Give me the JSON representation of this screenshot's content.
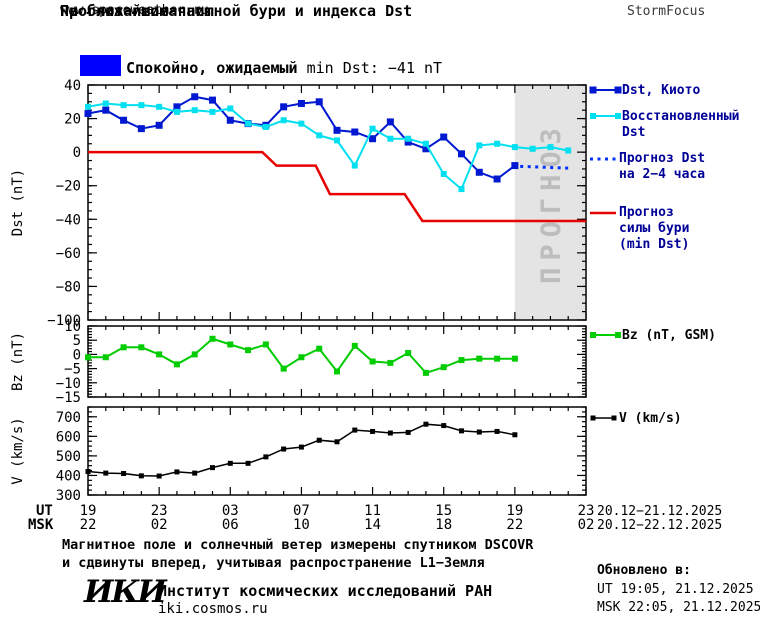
{
  "header": {
    "title_line1": "Прогноз геомагнитной бури и индекса Dst",
    "title_line2": "на ближайшие часы",
    "url": "www.spaceweather.ru",
    "brand": "StormFocus"
  },
  "status_banner": {
    "swatch_color": "#0000ff",
    "text_bold": "Спокойно, ожидаемый",
    "text_rest": " min Dst: −41 nT"
  },
  "legend_dst": {
    "text_color": "#000099",
    "entries": [
      {
        "label_lines": [
          "Dst, Киото"
        ],
        "color": "#0018d0",
        "style": "solid-marker"
      },
      {
        "label_lines": [
          "Восстановленный",
          "Dst"
        ],
        "color": "#00e0f0",
        "style": "solid-marker"
      },
      {
        "label_lines": [
          "Прогноз Dst",
          "на 2−4 часа"
        ],
        "color": "#0030ff",
        "style": "dotted"
      },
      {
        "label_lines": [
          "Прогноз",
          "силы бури",
          "(min Dst)"
        ],
        "color": "#e80000",
        "style": "solid"
      }
    ]
  },
  "legend_bz": {
    "label": "Bz (nT, GSM)",
    "color": "#00cc00"
  },
  "legend_v": {
    "label": "V (km/s)",
    "color": "#000000"
  },
  "forecast_band": {
    "label": "ПРОГНОЗ",
    "fill": "#e4e4e4",
    "text_color": "#bdbdbd"
  },
  "x_axis": {
    "ut_label": "UT",
    "msk_label": "MSK",
    "ut_hours": [
      "19",
      "23",
      "03",
      "07",
      "11",
      "15",
      "19",
      "23"
    ],
    "msk_hours": [
      "22",
      "02",
      "06",
      "10",
      "14",
      "18",
      "22",
      "02"
    ],
    "ut_dates": "20.12−21.12.2025",
    "msk_dates": "20.12−22.12.2025"
  },
  "footer": {
    "note_line1": "Магнитное поле и солнечный ветер измерены спутником DSCOVR",
    "note_line2": "и сдвинуты вперед, учитывая распространение L1−Земля",
    "logo": "ИКИ",
    "institute": "Институт космических исследований РАН",
    "institute_url": "iki.cosmos.ru",
    "updated_label": "Обновлено в:",
    "updated_ut": "UT  19:05, 21.12.2025",
    "updated_msk": "MSK 22:05, 21.12.2025"
  },
  "chart_data": [
    {
      "type": "line",
      "panel": "dst",
      "ylabel": "Dst (nT)",
      "ylim": [
        -100,
        40
      ],
      "yticks": [
        40,
        20,
        0,
        -20,
        -40,
        -60,
        -80,
        -100
      ],
      "y_minor_step": 5,
      "xlim_hours": [
        0,
        28
      ],
      "x_major_step": 4,
      "forecast_band_hours": [
        24,
        28
      ],
      "series": [
        {
          "name": "Dst, Киото",
          "color": "#0018d0",
          "marker": "square",
          "marker_size": 7,
          "width": 2,
          "x": [
            0,
            1,
            2,
            3,
            4,
            5,
            6,
            7,
            8,
            9,
            10,
            11,
            12,
            13,
            14,
            15,
            16,
            17,
            18,
            19,
            20,
            21,
            22,
            23,
            24
          ],
          "y": [
            23,
            25,
            19,
            14,
            16,
            27,
            33,
            31,
            19,
            17,
            16,
            27,
            29,
            30,
            13,
            12,
            8,
            18,
            6,
            2,
            9,
            -1,
            -12,
            -16,
            -8
          ]
        },
        {
          "name": "Восстановленный Dst",
          "color": "#00e0f0",
          "marker": "square",
          "marker_size": 6,
          "width": 2,
          "x": [
            0,
            1,
            2,
            3,
            4,
            5,
            6,
            7,
            8,
            9,
            10,
            11,
            12,
            13,
            14,
            15,
            16,
            17,
            18,
            19,
            20,
            21,
            22,
            23,
            24,
            25,
            26,
            27
          ],
          "y": [
            27,
            29,
            28,
            28,
            27,
            24,
            25,
            24,
            26,
            17,
            15,
            19,
            17,
            10,
            7,
            -8,
            14,
            8,
            8,
            5,
            -13,
            -22,
            4,
            5,
            3,
            2,
            3,
            1
          ]
        },
        {
          "name": "Прогноз Dst на 2−4 часа",
          "color": "#0030ff",
          "style": "dotted",
          "width": 3,
          "x": [
            24.3,
            27
          ],
          "y": [
            -8.5,
            -9.5
          ]
        },
        {
          "name": "Прогноз силы бури (min Dst)",
          "color": "#e80000",
          "width": 2.5,
          "x": [
            0,
            9.8,
            10.6,
            12.8,
            13.6,
            17.8,
            18.8,
            28
          ],
          "y": [
            0,
            0,
            -8,
            -8,
            -25,
            -25,
            -41,
            -41
          ]
        }
      ]
    },
    {
      "type": "line",
      "panel": "bz",
      "ylabel": "Bz (nT)",
      "ylim": [
        -15,
        10
      ],
      "yticks": [
        10,
        5,
        0,
        -5,
        -10,
        -15
      ],
      "y_minor_step": 1,
      "series": [
        {
          "name": "Bz (nT, GSM)",
          "color": "#00cc00",
          "marker": "square",
          "marker_size": 6,
          "width": 2,
          "x": [
            0,
            1,
            2,
            3,
            4,
            5,
            6,
            7,
            8,
            9,
            10,
            11,
            12,
            13,
            14,
            15,
            16,
            17,
            18,
            19,
            20,
            21,
            22,
            23,
            24
          ],
          "y": [
            -1,
            -1,
            2.5,
            2.5,
            0,
            -3.5,
            0,
            5.5,
            3.5,
            1.5,
            3.5,
            -5,
            -1,
            2,
            -6,
            3,
            -2.5,
            -3,
            0.5,
            -6.5,
            -4.5,
            -2,
            -1.5,
            -1.5,
            -1.5
          ]
        }
      ]
    },
    {
      "type": "line",
      "panel": "v",
      "ylabel": "V (km/s)",
      "ylim": [
        300,
        750
      ],
      "yticks": [
        700,
        600,
        500,
        400,
        300
      ],
      "y_minor_step": 25,
      "series": [
        {
          "name": "V (km/s)",
          "color": "#000000",
          "marker": "square",
          "marker_size": 5,
          "width": 1.5,
          "x": [
            0,
            1,
            2,
            3,
            4,
            5,
            6,
            7,
            8,
            9,
            10,
            11,
            12,
            13,
            14,
            15,
            16,
            17,
            18,
            19,
            20,
            21,
            22,
            23,
            24
          ],
          "y": [
            420,
            412,
            410,
            398,
            397,
            418,
            412,
            440,
            462,
            462,
            495,
            535,
            545,
            580,
            572,
            632,
            625,
            617,
            620,
            662,
            655,
            628,
            622,
            625,
            608
          ]
        }
      ]
    }
  ]
}
